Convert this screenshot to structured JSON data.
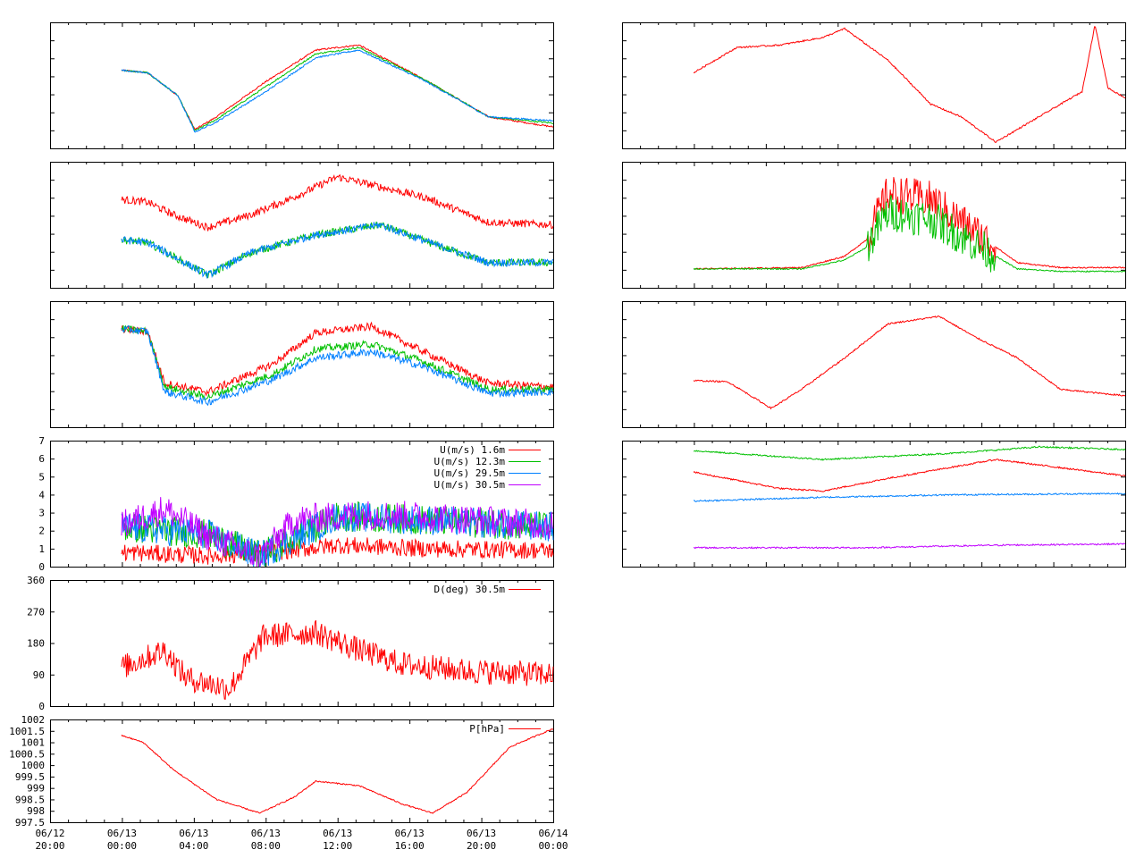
{
  "colors": {
    "red": "#ff0000",
    "green": "#00c000",
    "blue": "#0080ff",
    "purple": "#c000ff",
    "axis": "#000000"
  },
  "x_axis": {
    "range": [
      "06/12 20:00",
      "06/14 00:00"
    ],
    "ticks": [
      {
        "date": "06/12",
        "time": "20:00"
      },
      {
        "date": "06/13",
        "time": "00:00"
      },
      {
        "date": "06/13",
        "time": "04:00"
      },
      {
        "date": "06/13",
        "time": "08:00"
      },
      {
        "date": "06/13",
        "time": "12:00"
      },
      {
        "date": "06/13",
        "time": "16:00"
      },
      {
        "date": "06/13",
        "time": "20:00"
      },
      {
        "date": "06/14",
        "time": "00:00"
      }
    ]
  },
  "chart_data": [
    {
      "id": "temp_profile",
      "type": "line",
      "series": [
        {
          "color": "red",
          "points": [
            [
              0,
              0.62
            ],
            [
              0.06,
              0.6
            ],
            [
              0.13,
              0.42
            ],
            [
              0.17,
              0.15
            ],
            [
              0.22,
              0.25
            ],
            [
              0.33,
              0.52
            ],
            [
              0.45,
              0.78
            ],
            [
              0.55,
              0.82
            ],
            [
              0.7,
              0.55
            ],
            [
              0.85,
              0.25
            ],
            [
              1.0,
              0.17
            ]
          ]
        },
        {
          "color": "green",
          "points": [
            [
              0,
              0.62
            ],
            [
              0.06,
              0.6
            ],
            [
              0.13,
              0.42
            ],
            [
              0.17,
              0.14
            ],
            [
              0.22,
              0.23
            ],
            [
              0.33,
              0.48
            ],
            [
              0.45,
              0.75
            ],
            [
              0.55,
              0.8
            ],
            [
              0.7,
              0.55
            ],
            [
              0.85,
              0.25
            ],
            [
              1.0,
              0.2
            ]
          ]
        },
        {
          "color": "blue",
          "points": [
            [
              0,
              0.62
            ],
            [
              0.06,
              0.6
            ],
            [
              0.13,
              0.42
            ],
            [
              0.17,
              0.13
            ],
            [
              0.22,
              0.21
            ],
            [
              0.33,
              0.44
            ],
            [
              0.45,
              0.72
            ],
            [
              0.55,
              0.78
            ],
            [
              0.7,
              0.54
            ],
            [
              0.85,
              0.25
            ],
            [
              1.0,
              0.22
            ]
          ]
        }
      ]
    },
    {
      "id": "humidity_profile",
      "type": "line",
      "series": [
        {
          "color": "red",
          "points": [
            [
              0,
              0.7
            ],
            [
              0.06,
              0.68
            ],
            [
              0.12,
              0.58
            ],
            [
              0.2,
              0.48
            ],
            [
              0.3,
              0.58
            ],
            [
              0.4,
              0.72
            ],
            [
              0.5,
              0.88
            ],
            [
              0.6,
              0.8
            ],
            [
              0.7,
              0.72
            ],
            [
              0.85,
              0.52
            ],
            [
              1.0,
              0.5
            ]
          ]
        },
        {
          "color": "green",
          "points": [
            [
              0,
              0.38
            ],
            [
              0.06,
              0.36
            ],
            [
              0.2,
              0.1
            ],
            [
              0.3,
              0.28
            ],
            [
              0.45,
              0.42
            ],
            [
              0.6,
              0.5
            ],
            [
              0.72,
              0.35
            ],
            [
              0.85,
              0.2
            ],
            [
              1.0,
              0.2
            ]
          ]
        },
        {
          "color": "blue",
          "points": [
            [
              0,
              0.38
            ],
            [
              0.06,
              0.36
            ],
            [
              0.2,
              0.1
            ],
            [
              0.3,
              0.28
            ],
            [
              0.45,
              0.42
            ],
            [
              0.6,
              0.5
            ],
            [
              0.72,
              0.35
            ],
            [
              0.85,
              0.2
            ],
            [
              1.0,
              0.2
            ]
          ]
        }
      ]
    },
    {
      "id": "temp_profile_2",
      "type": "line",
      "series": [
        {
          "color": "red",
          "points": [
            [
              0,
              0.78
            ],
            [
              0.06,
              0.76
            ],
            [
              0.1,
              0.35
            ],
            [
              0.2,
              0.28
            ],
            [
              0.35,
              0.5
            ],
            [
              0.45,
              0.75
            ],
            [
              0.58,
              0.8
            ],
            [
              0.7,
              0.6
            ],
            [
              0.85,
              0.35
            ],
            [
              1.0,
              0.32
            ]
          ]
        },
        {
          "color": "green",
          "points": [
            [
              0,
              0.78
            ],
            [
              0.06,
              0.76
            ],
            [
              0.1,
              0.32
            ],
            [
              0.2,
              0.24
            ],
            [
              0.35,
              0.42
            ],
            [
              0.45,
              0.62
            ],
            [
              0.58,
              0.66
            ],
            [
              0.7,
              0.52
            ],
            [
              0.85,
              0.3
            ],
            [
              1.0,
              0.3
            ]
          ]
        },
        {
          "color": "blue",
          "points": [
            [
              0,
              0.78
            ],
            [
              0.06,
              0.76
            ],
            [
              0.1,
              0.28
            ],
            [
              0.2,
              0.2
            ],
            [
              0.35,
              0.38
            ],
            [
              0.45,
              0.55
            ],
            [
              0.58,
              0.6
            ],
            [
              0.7,
              0.48
            ],
            [
              0.85,
              0.27
            ],
            [
              1.0,
              0.28
            ]
          ]
        }
      ]
    },
    {
      "id": "wind_speed",
      "type": "line",
      "ylim": [
        0,
        7
      ],
      "yticks": [
        "0",
        "1",
        "2",
        "3",
        "4",
        "5",
        "6",
        "7"
      ],
      "legend_position": "top-right",
      "series": [
        {
          "name": "U(m/s)  1.6m",
          "color": "red",
          "points": [
            [
              0,
              0.8
            ],
            [
              0.2,
              0.6
            ],
            [
              0.35,
              0.8
            ],
            [
              0.5,
              1.2
            ],
            [
              0.7,
              1.0
            ],
            [
              1.0,
              0.9
            ]
          ]
        },
        {
          "name": "U(m/s) 12.3m",
          "color": "green",
          "points": [
            [
              0,
              2.2
            ],
            [
              0.2,
              1.8
            ],
            [
              0.32,
              0.6
            ],
            [
              0.5,
              2.8
            ],
            [
              0.7,
              2.6
            ],
            [
              1.0,
              2.2
            ]
          ]
        },
        {
          "name": "U(m/s) 29.5m",
          "color": "blue",
          "points": [
            [
              0,
              2.2
            ],
            [
              0.2,
              1.8
            ],
            [
              0.32,
              0.6
            ],
            [
              0.5,
              2.8
            ],
            [
              0.7,
              2.6
            ],
            [
              1.0,
              2.2
            ]
          ]
        },
        {
          "name": "U(m/s) 30.5m",
          "color": "purple",
          "points": [
            [
              0,
              2.3
            ],
            [
              0.1,
              3.2
            ],
            [
              0.2,
              1.7
            ],
            [
              0.32,
              0.5
            ],
            [
              0.4,
              2.6
            ],
            [
              0.55,
              2.9
            ],
            [
              0.7,
              2.8
            ],
            [
              1.0,
              2.3
            ]
          ]
        }
      ]
    },
    {
      "id": "wind_direction",
      "type": "line",
      "ylim": [
        0,
        360
      ],
      "yticks": [
        "0",
        "90",
        "180",
        "270",
        "360"
      ],
      "legend_position": "top-right",
      "series": [
        {
          "name": "D(deg)  30.5m",
          "color": "red",
          "points": [
            [
              0,
              110
            ],
            [
              0.1,
              160
            ],
            [
              0.15,
              80
            ],
            [
              0.25,
              50
            ],
            [
              0.33,
              200
            ],
            [
              0.45,
              210
            ],
            [
              0.55,
              160
            ],
            [
              0.65,
              120
            ],
            [
              0.8,
              100
            ],
            [
              1.0,
              90
            ]
          ]
        }
      ]
    },
    {
      "id": "pressure",
      "type": "line",
      "ylim": [
        997.5,
        1002
      ],
      "yticks": [
        "997.5",
        "998",
        "998.5",
        "999",
        "999.5",
        "1000",
        "1000.5",
        "1001",
        "1001.5",
        "1002"
      ],
      "legend_position": "top-right",
      "series": [
        {
          "name": "P[hPa]",
          "color": "red",
          "points": [
            [
              0,
              1001.3
            ],
            [
              0.05,
              1001.0
            ],
            [
              0.12,
              999.8
            ],
            [
              0.22,
              998.5
            ],
            [
              0.32,
              997.9
            ],
            [
              0.4,
              998.6
            ],
            [
              0.45,
              999.3
            ],
            [
              0.55,
              999.1
            ],
            [
              0.65,
              998.3
            ],
            [
              0.72,
              997.9
            ],
            [
              0.8,
              998.8
            ],
            [
              0.9,
              1000.8
            ],
            [
              1.0,
              1001.6
            ]
          ]
        }
      ]
    },
    {
      "id": "right_1",
      "type": "line",
      "series": [
        {
          "color": "red",
          "points": [
            [
              0,
              0.6
            ],
            [
              0.05,
              0.7
            ],
            [
              0.1,
              0.8
            ],
            [
              0.2,
              0.82
            ],
            [
              0.3,
              0.88
            ],
            [
              0.35,
              0.95
            ],
            [
              0.45,
              0.7
            ],
            [
              0.55,
              0.35
            ],
            [
              0.62,
              0.25
            ],
            [
              0.7,
              0.05
            ],
            [
              0.8,
              0.25
            ],
            [
              0.9,
              0.45
            ],
            [
              0.93,
              0.98
            ],
            [
              0.96,
              0.48
            ],
            [
              1.0,
              0.4
            ]
          ]
        }
      ]
    },
    {
      "id": "right_2",
      "type": "line",
      "series": [
        {
          "color": "red",
          "points": [
            [
              0,
              0.15
            ],
            [
              0.25,
              0.16
            ],
            [
              0.35,
              0.25
            ],
            [
              0.4,
              0.38
            ],
            [
              0.45,
              0.75
            ],
            [
              0.55,
              0.7
            ],
            [
              0.65,
              0.45
            ],
            [
              0.75,
              0.2
            ],
            [
              0.85,
              0.16
            ],
            [
              1.0,
              0.16
            ]
          ]
        },
        {
          "color": "green",
          "points": [
            [
              0,
              0.15
            ],
            [
              0.25,
              0.15
            ],
            [
              0.35,
              0.22
            ],
            [
              0.4,
              0.32
            ],
            [
              0.45,
              0.6
            ],
            [
              0.55,
              0.55
            ],
            [
              0.65,
              0.35
            ],
            [
              0.75,
              0.15
            ],
            [
              0.85,
              0.13
            ],
            [
              1.0,
              0.13
            ]
          ]
        }
      ]
    },
    {
      "id": "right_3",
      "type": "line",
      "series": [
        {
          "color": "red",
          "points": [
            [
              0,
              0.37
            ],
            [
              0.08,
              0.36
            ],
            [
              0.18,
              0.15
            ],
            [
              0.25,
              0.3
            ],
            [
              0.35,
              0.55
            ],
            [
              0.45,
              0.82
            ],
            [
              0.57,
              0.88
            ],
            [
              0.65,
              0.72
            ],
            [
              0.75,
              0.55
            ],
            [
              0.85,
              0.3
            ],
            [
              1.0,
              0.25
            ]
          ]
        }
      ]
    },
    {
      "id": "right_4",
      "type": "line",
      "series": [
        {
          "color": "green",
          "points": [
            [
              0,
              0.92
            ],
            [
              0.3,
              0.85
            ],
            [
              0.6,
              0.9
            ],
            [
              0.8,
              0.95
            ],
            [
              1.0,
              0.93
            ]
          ]
        },
        {
          "color": "red",
          "points": [
            [
              0,
              0.75
            ],
            [
              0.2,
              0.62
            ],
            [
              0.3,
              0.6
            ],
            [
              0.45,
              0.7
            ],
            [
              0.7,
              0.85
            ],
            [
              1.0,
              0.72
            ]
          ]
        },
        {
          "color": "blue",
          "points": [
            [
              0,
              0.52
            ],
            [
              0.3,
              0.55
            ],
            [
              0.6,
              0.57
            ],
            [
              1.0,
              0.58
            ]
          ]
        },
        {
          "color": "purple",
          "points": [
            [
              0,
              0.15
            ],
            [
              0.4,
              0.15
            ],
            [
              0.7,
              0.17
            ],
            [
              1.0,
              0.18
            ]
          ]
        }
      ]
    }
  ]
}
